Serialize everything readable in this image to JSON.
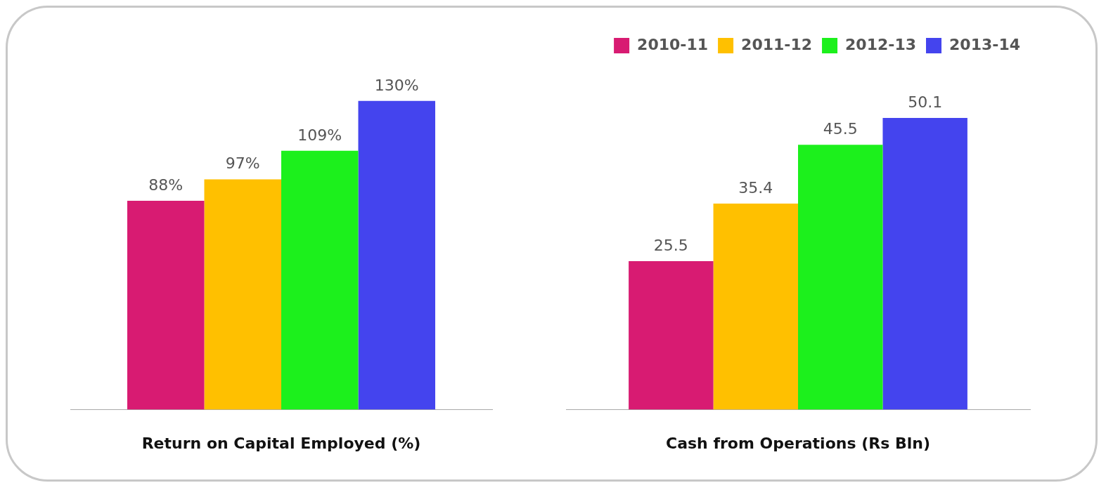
{
  "chart_data": [
    {
      "type": "bar",
      "xlabel": "Return on Capital Employed (%)",
      "categories": [
        null
      ],
      "tick_labels": false,
      "legend": false,
      "grid": false,
      "series": [
        {
          "color": "#d81b72",
          "values": [
            88
          ],
          "value_labels": [
            "88%"
          ]
        },
        {
          "color": "#ffc000",
          "values": [
            97
          ],
          "value_labels": [
            "97%"
          ]
        },
        {
          "color": "#1cf01c",
          "values": [
            109
          ],
          "value_labels": [
            "109%"
          ]
        },
        {
          "color": "#4444ee",
          "values": [
            130
          ],
          "value_labels": [
            "130%"
          ]
        }
      ]
    },
    {
      "type": "bar",
      "xlabel": "Cash from Operations (Rs Bln)",
      "categories": [
        null
      ],
      "tick_labels": false,
      "legend": "top right",
      "grid": false,
      "series": [
        {
          "name": "2010-11",
          "color": "#d81b72",
          "values": [
            25.5
          ],
          "value_labels": [
            "25.5"
          ]
        },
        {
          "name": "2011-12",
          "color": "#ffc000",
          "values": [
            35.4
          ],
          "value_labels": [
            "35.4"
          ]
        },
        {
          "name": "2012-13",
          "color": "#1cf01c",
          "values": [
            45.5
          ],
          "value_labels": [
            "45.5"
          ]
        },
        {
          "name": "2013-14",
          "color": "#4444ee",
          "values": [
            50.1
          ],
          "value_labels": [
            "50.1"
          ]
        }
      ]
    }
  ]
}
